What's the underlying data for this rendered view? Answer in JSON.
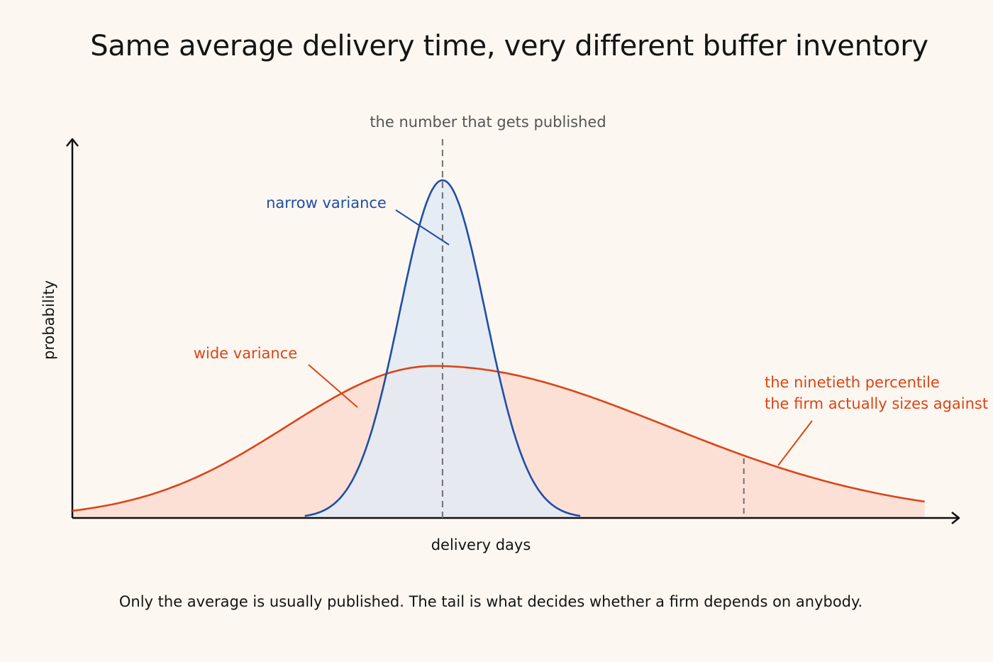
{
  "title": "Same average delivery time, very different buffer inventory",
  "caption": "Only the average is usually published. The tail is what decides whether a firm depends on anybody.",
  "colors": {
    "background": "#fcf7f1",
    "narrow": "#1f4ea6",
    "narrow_fill": "#e2eaf3",
    "wide": "#db4517",
    "wide_fill": "#fbdcd1",
    "marker": "#707070",
    "text": "#141414"
  },
  "chart_data": {
    "type": "area",
    "title": "Same average delivery time, very different buffer inventory",
    "xlabel": "delivery days",
    "ylabel": "probability",
    "ticks_shown": false,
    "grid": false,
    "xlim": [
      -4.3,
      5.9
    ],
    "ylim": [
      0,
      1
    ],
    "mean_marker": {
      "x": 0,
      "label": "the number that gets published"
    },
    "percentile_marker": {
      "x": 3.5,
      "label": [
        "the ninetieth percentile",
        "the firm actually sizes against"
      ]
    },
    "series": [
      {
        "name": "narrow variance",
        "distribution": "normal",
        "mean": 0,
        "sd": 0.5,
        "peak": 1.0,
        "x_range": [
          -1.6,
          1.6
        ]
      },
      {
        "name": "wide variance",
        "distribution": "right-skewed",
        "mode": -0.1,
        "sd_left": 1.7,
        "sd_right": 2.7,
        "peak": 0.45,
        "x_range": [
          -4.3,
          5.6
        ]
      }
    ]
  }
}
